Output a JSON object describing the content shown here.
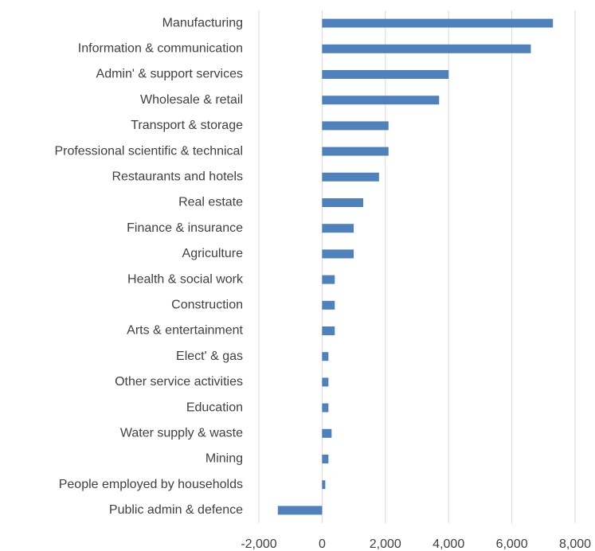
{
  "chart_data": {
    "type": "barh",
    "categories": [
      "Manufacturing",
      "Information & communication",
      "Admin' & support services",
      "Wholesale & retail",
      "Transport & storage",
      "Professional scientific & technical",
      "Restaurants and hotels",
      "Real estate",
      "Finance & insurance",
      "Agriculture",
      "Health & social work",
      "Construction",
      "Arts & entertainment",
      "Elect' & gas",
      "Other service activities",
      "Education",
      "Water supply & waste",
      "Mining",
      "People employed by households",
      "Public admin & defence"
    ],
    "values": [
      7300,
      6600,
      4000,
      3700,
      2100,
      2100,
      1800,
      1300,
      1000,
      1000,
      400,
      400,
      400,
      200,
      200,
      200,
      300,
      200,
      100,
      -1400
    ],
    "color": "#4f81bd",
    "xlim": [
      -2000,
      8000
    ],
    "xticks": [
      {
        "value": -2000,
        "label": "-2,000"
      },
      0,
      {
        "value": 2000,
        "label": "2,000"
      },
      {
        "value": 4000,
        "label": "4,000"
      },
      {
        "value": 6000,
        "label": "6,000"
      },
      {
        "value": 8000,
        "label": "8,000"
      }
    ],
    "grid": true
  }
}
